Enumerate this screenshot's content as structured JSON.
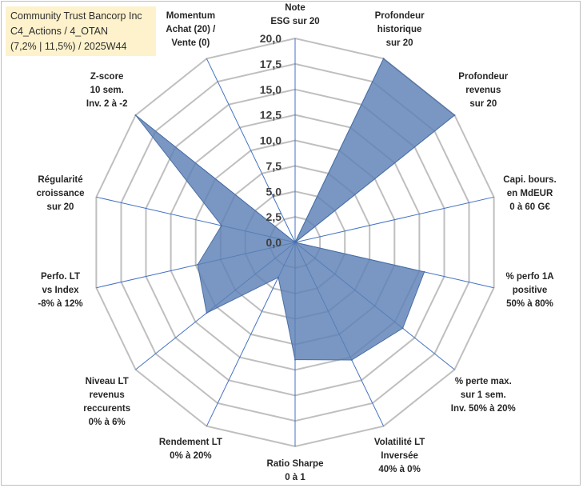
{
  "title_box": {
    "line1": "Community Trust Bancorp Inc",
    "line2": "C4_Actions / 4_OTAN",
    "line3": "(7,2% | 11,5%) / 2025W44"
  },
  "colors": {
    "fill": "#5b80b5",
    "stroke": "#4a6fa5",
    "grid": "#bfbfbf",
    "axis": "#4472c4",
    "title_bg": "#fdf2cc"
  },
  "chart_data": {
    "type": "radar",
    "title": "",
    "rmin": 0,
    "rmax": 20,
    "ticks": [
      0,
      2.5,
      5,
      7.5,
      10,
      12.5,
      15,
      17.5,
      20
    ],
    "tick_labels": [
      "0,0",
      "2,5",
      "5,0",
      "7,5",
      "10,0",
      "12,5",
      "15,0",
      "17,5",
      "20,0"
    ],
    "axes": [
      {
        "label": [
          "Note",
          "ESG sur 20"
        ],
        "value": 0
      },
      {
        "label": [
          "Profondeur",
          "historique",
          "sur 20"
        ],
        "value": 20
      },
      {
        "label": [
          "Profondeur",
          "revenus",
          "sur 20"
        ],
        "value": 20
      },
      {
        "label": [
          "Capi. bours.",
          "en MdEUR",
          "0 à 60 G€"
        ],
        "value": 0
      },
      {
        "label": [
          "% perfo 1A",
          "positive",
          "50% à 80%"
        ],
        "value": 13
      },
      {
        "label": [
          "% perte max.",
          "sur 1 sem.",
          "Inv. 50% à 20%"
        ],
        "value": 13.5
      },
      {
        "label": [
          "Volatilité LT",
          "Inversée",
          "40% à 0%"
        ],
        "value": 12.8
      },
      {
        "label": [
          "Ratio Sharpe",
          "0 à 1"
        ],
        "value": 11.5
      },
      {
        "label": [
          "Rendement LT",
          "0% à 20%"
        ],
        "value": 3.8
      },
      {
        "label": [
          "Niveau LT",
          "revenus",
          "reccurents",
          "0% à 6%"
        ],
        "value": 11.1
      },
      {
        "label": [
          "Perfo. LT",
          "vs Index",
          "-8% à 12%"
        ],
        "value": 9.8
      },
      {
        "label": [
          "Régularité",
          "croissance",
          "sur 20"
        ],
        "value": 7.4
      },
      {
        "label": [
          "Z-score",
          "10 sem.",
          "Inv. 2 à -2"
        ],
        "value": 20
      },
      {
        "label": [
          "Momentum",
          "Achat (20) /",
          "Vente (0)"
        ],
        "value": 0
      }
    ]
  }
}
